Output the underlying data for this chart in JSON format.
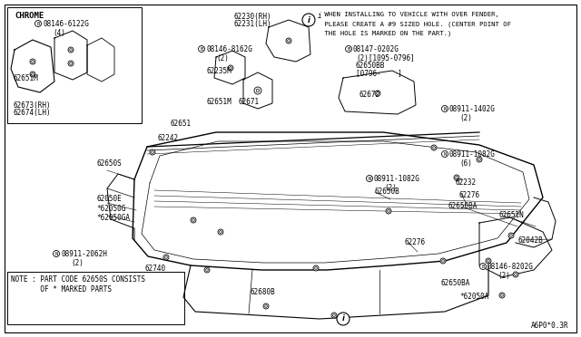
{
  "bg_color": "#ffffff",
  "line_color": "#000000",
  "diagram_code": "A6P0*0.3R",
  "note_text": [
    "NOTE : PART CODE 62650S CONSISTS",
    "       OF * MARKED PARTS"
  ],
  "instruction_text": [
    " WHEN INSTALLING TO VEHICLE WITH OVER FENDER,",
    " PLEASE CREATE A #9 SIZED HOLE. (CENTER POINT OF",
    " THE HOLE IS MARKED ON THE PART.)"
  ]
}
